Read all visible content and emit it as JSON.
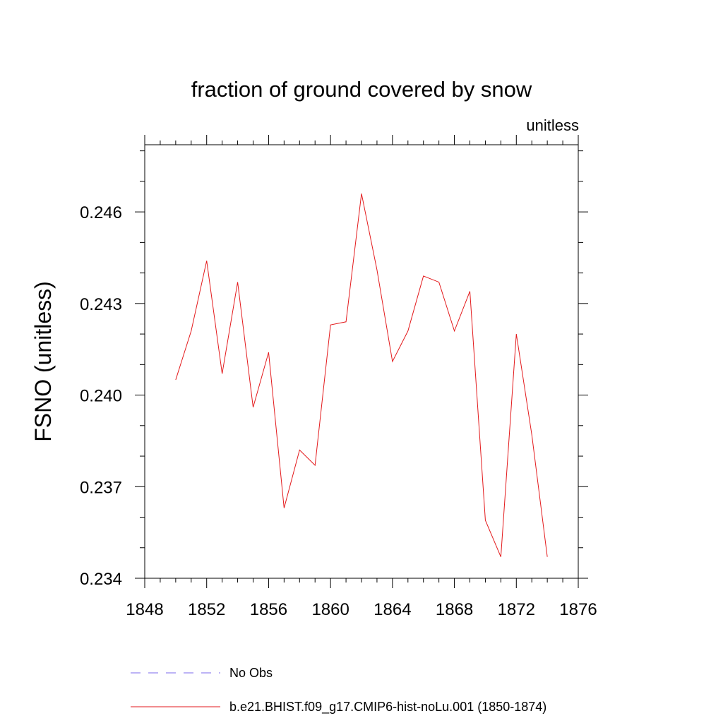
{
  "chart_data": {
    "type": "line",
    "title": "fraction of ground covered by snow",
    "units": "unitless",
    "ylabel": "FSNO  (unitless)",
    "xlabel": "",
    "xlim": [
      1848,
      1876
    ],
    "ylim": [
      0.234,
      0.2482
    ],
    "x_ticks": [
      "1848",
      "1852",
      "1856",
      "1860",
      "1864",
      "1868",
      "1872",
      "1876"
    ],
    "y_ticks": [
      "0.234",
      "0.237",
      "0.240",
      "0.243",
      "0.246"
    ],
    "grid": false,
    "legend_position": "bottom",
    "series": [
      {
        "name": "No Obs",
        "color": "#7b68ee",
        "style": "dashed",
        "x": [],
        "values": []
      },
      {
        "name": "b.e21.BHIST.f09_g17.CMIP6-hist-noLu.001 (1850-1874)",
        "color": "#e31a1c",
        "style": "solid",
        "x": [
          1850,
          1851,
          1852,
          1853,
          1854,
          1855,
          1856,
          1857,
          1858,
          1859,
          1860,
          1861,
          1862,
          1863,
          1864,
          1865,
          1866,
          1867,
          1868,
          1869,
          1870,
          1871,
          1872,
          1873,
          1874
        ],
        "values": [
          0.2405,
          0.2421,
          0.2444,
          0.2407,
          0.2437,
          0.2396,
          0.2414,
          0.2363,
          0.2382,
          0.2377,
          0.2423,
          0.2424,
          0.2466,
          0.2441,
          0.2411,
          0.2421,
          0.2439,
          0.2437,
          0.2421,
          0.2434,
          0.2359,
          0.2347,
          0.242,
          0.2387,
          0.2347
        ]
      }
    ]
  }
}
